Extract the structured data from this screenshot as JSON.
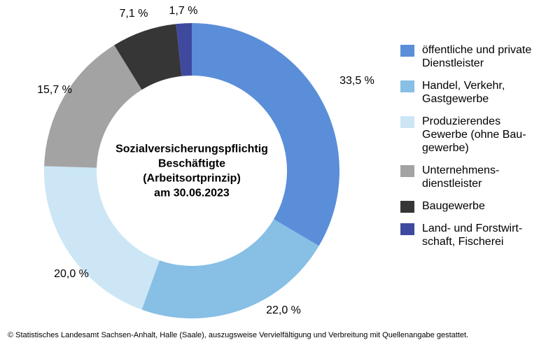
{
  "chart_data": {
    "type": "pie",
    "center_label": [
      "Sozialversicherungspflichtig",
      "Beschäftigte",
      "(Arbeitsortprinzip)",
      "am 30.06.2023"
    ],
    "slices": [
      {
        "name": "öffentliche und private\nDienstleister",
        "value": 33.5,
        "label": "33,5 %",
        "color": "#5b8ed9"
      },
      {
        "name": "Handel, Verkehr,\nGastgewerbe",
        "value": 22.0,
        "label": "22,0 %",
        "color": "#87bfe5"
      },
      {
        "name": "Produzierendes\nGewerbe (ohne Bau-\ngewerbe)",
        "value": 20.0,
        "label": "20,0 %",
        "color": "#cce6f5"
      },
      {
        "name": "Unternehmens-\ndienstleister",
        "value": 15.7,
        "label": "15,7 %",
        "color": "#a3a3a3"
      },
      {
        "name": "Baugewerbe",
        "value": 7.1,
        "label": "7,1 %",
        "color": "#363636"
      },
      {
        "name": "Land- und  Forstwirt-\nschaft, Fischerei",
        "value": 1.7,
        "label": "1,7 %",
        "color": "#3f4a9e"
      }
    ],
    "legend_position": "right"
  },
  "footer": "© Statistisches Landesamt Sachsen-Anhalt, Halle (Saale), auszugsweise Vervielfältigung und Verbreitung mit Quellenangabe gestattet."
}
